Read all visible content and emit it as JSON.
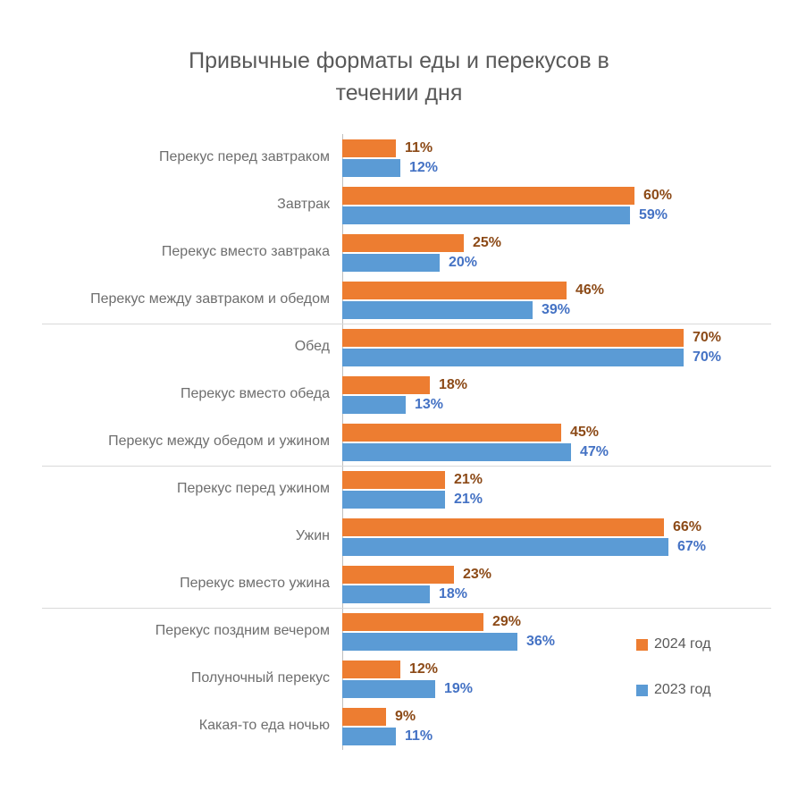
{
  "title": {
    "line1": "Привычные форматы еды и перекусов в",
    "line2": "течении дня"
  },
  "colors": {
    "series_2024": "#ED7D31",
    "series_2023": "#5B9BD5",
    "label_2024": "#8C4A17",
    "label_2023": "#4472C4",
    "title_text": "#595959",
    "category_text": "#6E6E6E",
    "axis_line": "#BFBFBF",
    "separator_line": "#D9D9D9"
  },
  "chart_data": {
    "type": "bar",
    "orientation": "horizontal",
    "title": "Привычные форматы еды и перекусов в течении дня",
    "value_suffix": "%",
    "xlim": [
      0,
      88
    ],
    "grid": false,
    "legend_position": "right-bottom",
    "categories": [
      "Перекус перед завтраком",
      "Завтрак",
      "Перекус вместо завтрака",
      "Перекус между завтраком и обедом",
      "Обед",
      "Перекус вместо обеда",
      "Перекус между обедом и ужином",
      "Перекус перед ужином",
      "Ужин",
      "Перекус вместо ужина",
      "Перекус поздним вечером",
      "Полуночный перекус",
      "Какая-то еда ночью"
    ],
    "series": [
      {
        "name": "2024 год",
        "color": "#ED7D31",
        "label_color": "#8C4A17",
        "values": [
          11,
          60,
          25,
          46,
          70,
          18,
          45,
          21,
          66,
          23,
          29,
          12,
          9
        ]
      },
      {
        "name": "2023 год",
        "color": "#5B9BD5",
        "label_color": "#4472C4",
        "values": [
          12,
          59,
          20,
          39,
          70,
          13,
          47,
          21,
          67,
          18,
          36,
          19,
          11
        ]
      }
    ],
    "group_separators_after": [
      3,
      6,
      9
    ]
  }
}
